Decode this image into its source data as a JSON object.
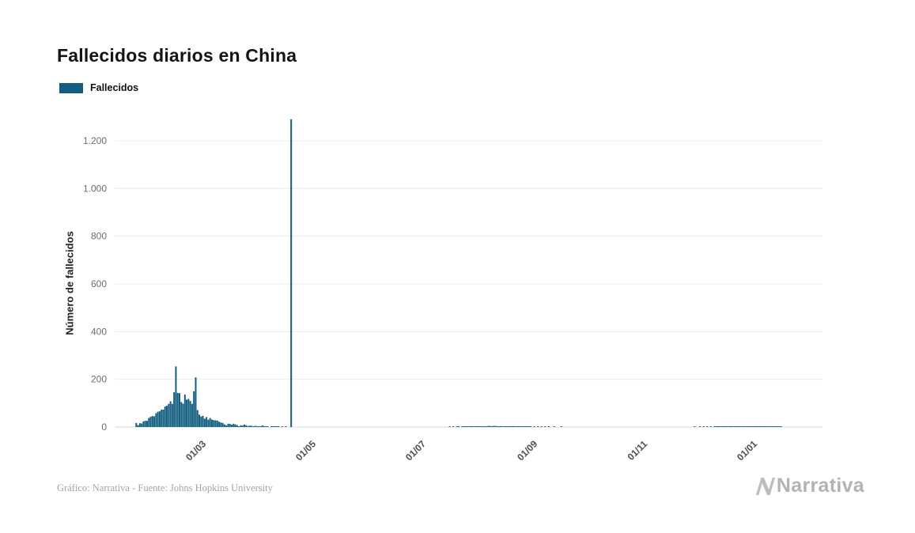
{
  "header": {
    "title": "Fallecidos diarios en China"
  },
  "legend": {
    "items": [
      {
        "label": "Fallecidos",
        "color": "#115e80"
      }
    ]
  },
  "footer": {
    "credit": "Gráfico: Narrativa - Fuente: Johns Hopkins University",
    "brand": "Narrativa"
  },
  "colors": {
    "bar": "#115e80",
    "grid": "#ececec",
    "baseline": "#d8d8d8",
    "brand_gray": "#b3b3b3"
  },
  "chart_data": {
    "type": "bar",
    "title": "Fallecidos diarios en China",
    "xlabel": "",
    "ylabel": "Número de fallecidos",
    "series_name": "Fallecidos",
    "bar_color": "#115e80",
    "grid": true,
    "legend_position": "top-left",
    "ylim": [
      0,
      1290
    ],
    "y_grid_max": 1200,
    "y_ticks": [
      {
        "value": 0,
        "label": "0"
      },
      {
        "value": 200,
        "label": "200"
      },
      {
        "value": 400,
        "label": "400"
      },
      {
        "value": 600,
        "label": "600"
      },
      {
        "value": 800,
        "label": "800"
      },
      {
        "value": 1000,
        "label": "1.000"
      },
      {
        "value": 1200,
        "label": "1.200"
      }
    ],
    "x_ticks": [
      {
        "date": "2020-03-01",
        "label": "01/03"
      },
      {
        "date": "2020-05-01",
        "label": "01/05"
      },
      {
        "date": "2020-07-01",
        "label": "01/07"
      },
      {
        "date": "2020-09-01",
        "label": "01/09"
      },
      {
        "date": "2020-11-01",
        "label": "01/11"
      },
      {
        "date": "2021-01-01",
        "label": "01/01"
      }
    ],
    "x_domain": [
      "2020-01-10",
      "2021-02-06"
    ],
    "zero_fill": true,
    "points": [
      [
        "2020-01-22",
        17
      ],
      [
        "2020-01-23",
        8
      ],
      [
        "2020-01-24",
        16
      ],
      [
        "2020-01-25",
        15
      ],
      [
        "2020-01-26",
        24
      ],
      [
        "2020-01-27",
        26
      ],
      [
        "2020-01-28",
        26
      ],
      [
        "2020-01-29",
        38
      ],
      [
        "2020-01-30",
        43
      ],
      [
        "2020-01-31",
        46
      ],
      [
        "2020-02-01",
        45
      ],
      [
        "2020-02-02",
        58
      ],
      [
        "2020-02-03",
        64
      ],
      [
        "2020-02-04",
        66
      ],
      [
        "2020-02-05",
        73
      ],
      [
        "2020-02-06",
        73
      ],
      [
        "2020-02-07",
        86
      ],
      [
        "2020-02-08",
        89
      ],
      [
        "2020-02-09",
        97
      ],
      [
        "2020-02-10",
        108
      ],
      [
        "2020-02-11",
        97
      ],
      [
        "2020-02-12",
        146
      ],
      [
        "2020-02-13",
        254
      ],
      [
        "2020-02-14",
        143
      ],
      [
        "2020-02-15",
        142
      ],
      [
        "2020-02-16",
        105
      ],
      [
        "2020-02-17",
        98
      ],
      [
        "2020-02-18",
        136
      ],
      [
        "2020-02-19",
        115
      ],
      [
        "2020-02-20",
        118
      ],
      [
        "2020-02-21",
        109
      ],
      [
        "2020-02-22",
        97
      ],
      [
        "2020-02-23",
        150
      ],
      [
        "2020-02-24",
        208
      ],
      [
        "2020-02-25",
        71
      ],
      [
        "2020-02-26",
        52
      ],
      [
        "2020-02-27",
        44
      ],
      [
        "2020-02-28",
        47
      ],
      [
        "2020-02-29",
        35
      ],
      [
        "2020-03-01",
        42
      ],
      [
        "2020-03-02",
        31
      ],
      [
        "2020-03-03",
        38
      ],
      [
        "2020-03-04",
        31
      ],
      [
        "2020-03-05",
        29
      ],
      [
        "2020-03-06",
        28
      ],
      [
        "2020-03-07",
        27
      ],
      [
        "2020-03-08",
        22
      ],
      [
        "2020-03-09",
        19
      ],
      [
        "2020-03-10",
        17
      ],
      [
        "2020-03-11",
        11
      ],
      [
        "2020-03-12",
        7
      ],
      [
        "2020-03-13",
        14
      ],
      [
        "2020-03-14",
        13
      ],
      [
        "2020-03-15",
        10
      ],
      [
        "2020-03-16",
        14
      ],
      [
        "2020-03-17",
        11
      ],
      [
        "2020-03-18",
        8
      ],
      [
        "2020-03-19",
        3
      ],
      [
        "2020-03-20",
        7
      ],
      [
        "2020-03-21",
        6
      ],
      [
        "2020-03-22",
        10
      ],
      [
        "2020-03-23",
        7
      ],
      [
        "2020-03-24",
        4
      ],
      [
        "2020-03-25",
        6
      ],
      [
        "2020-03-26",
        5
      ],
      [
        "2020-03-27",
        3
      ],
      [
        "2020-03-28",
        5
      ],
      [
        "2020-03-29",
        4
      ],
      [
        "2020-03-30",
        2
      ],
      [
        "2020-03-31",
        1
      ],
      [
        "2020-04-01",
        7
      ],
      [
        "2020-04-02",
        4
      ],
      [
        "2020-04-03",
        3
      ],
      [
        "2020-04-04",
        1
      ],
      [
        "2020-04-06",
        1
      ],
      [
        "2020-04-07",
        2
      ],
      [
        "2020-04-08",
        2
      ],
      [
        "2020-04-09",
        1
      ],
      [
        "2020-04-10",
        1
      ],
      [
        "2020-04-12",
        1
      ],
      [
        "2020-04-14",
        1
      ],
      [
        "2020-04-17",
        1290
      ],
      [
        "2020-07-14",
        1
      ],
      [
        "2020-07-16",
        1
      ],
      [
        "2020-07-18",
        1
      ],
      [
        "2020-07-19",
        2
      ],
      [
        "2020-07-21",
        1
      ],
      [
        "2020-07-22",
        2
      ],
      [
        "2020-07-23",
        1
      ],
      [
        "2020-07-24",
        2
      ],
      [
        "2020-07-25",
        3
      ],
      [
        "2020-07-26",
        2
      ],
      [
        "2020-07-27",
        2
      ],
      [
        "2020-07-28",
        3
      ],
      [
        "2020-07-29",
        4
      ],
      [
        "2020-07-30",
        3
      ],
      [
        "2020-07-31",
        3
      ],
      [
        "2020-08-01",
        4
      ],
      [
        "2020-08-02",
        3
      ],
      [
        "2020-08-03",
        3
      ],
      [
        "2020-08-04",
        4
      ],
      [
        "2020-08-05",
        5
      ],
      [
        "2020-08-06",
        3
      ],
      [
        "2020-08-07",
        4
      ],
      [
        "2020-08-08",
        5
      ],
      [
        "2020-08-09",
        4
      ],
      [
        "2020-08-10",
        3
      ],
      [
        "2020-08-11",
        4
      ],
      [
        "2020-08-12",
        3
      ],
      [
        "2020-08-13",
        2
      ],
      [
        "2020-08-14",
        3
      ],
      [
        "2020-08-15",
        2
      ],
      [
        "2020-08-16",
        3
      ],
      [
        "2020-08-17",
        2
      ],
      [
        "2020-08-18",
        4
      ],
      [
        "2020-08-19",
        3
      ],
      [
        "2020-08-20",
        2
      ],
      [
        "2020-08-21",
        1
      ],
      [
        "2020-08-22",
        2
      ],
      [
        "2020-08-23",
        1
      ],
      [
        "2020-08-24",
        2
      ],
      [
        "2020-08-25",
        1
      ],
      [
        "2020-08-26",
        2
      ],
      [
        "2020-08-27",
        1
      ],
      [
        "2020-08-28",
        1
      ],
      [
        "2020-08-30",
        1
      ],
      [
        "2020-09-01",
        1
      ],
      [
        "2020-09-03",
        1
      ],
      [
        "2020-09-05",
        1
      ],
      [
        "2020-09-07",
        1
      ],
      [
        "2020-09-10",
        1
      ],
      [
        "2020-09-14",
        1
      ],
      [
        "2020-11-27",
        1
      ],
      [
        "2020-11-30",
        1
      ],
      [
        "2020-12-02",
        1
      ],
      [
        "2020-12-04",
        1
      ],
      [
        "2020-12-06",
        1
      ],
      [
        "2020-12-08",
        2
      ],
      [
        "2020-12-09",
        1
      ],
      [
        "2020-12-10",
        2
      ],
      [
        "2020-12-11",
        1
      ],
      [
        "2020-12-12",
        2
      ],
      [
        "2020-12-13",
        2
      ],
      [
        "2020-12-14",
        2
      ],
      [
        "2020-12-15",
        2
      ],
      [
        "2020-12-16",
        2
      ],
      [
        "2020-12-17",
        3
      ],
      [
        "2020-12-18",
        2
      ],
      [
        "2020-12-19",
        2
      ],
      [
        "2020-12-20",
        2
      ],
      [
        "2020-12-21",
        2
      ],
      [
        "2020-12-22",
        3
      ],
      [
        "2020-12-23",
        2
      ],
      [
        "2020-12-24",
        2
      ],
      [
        "2020-12-25",
        3
      ],
      [
        "2020-12-26",
        2
      ],
      [
        "2020-12-27",
        2
      ],
      [
        "2020-12-28",
        2
      ],
      [
        "2020-12-29",
        3
      ],
      [
        "2020-12-30",
        2
      ],
      [
        "2020-12-31",
        2
      ],
      [
        "2021-01-01",
        2
      ],
      [
        "2021-01-02",
        2
      ],
      [
        "2021-01-03",
        1
      ],
      [
        "2021-01-04",
        2
      ],
      [
        "2021-01-05",
        1
      ],
      [
        "2021-01-06",
        2
      ],
      [
        "2021-01-07",
        1
      ],
      [
        "2021-01-08",
        1
      ],
      [
        "2021-01-09",
        1
      ],
      [
        "2021-01-10",
        1
      ],
      [
        "2021-01-11",
        1
      ],
      [
        "2021-01-12",
        1
      ],
      [
        "2021-01-13",
        1
      ],
      [
        "2021-01-14",
        1
      ]
    ]
  }
}
